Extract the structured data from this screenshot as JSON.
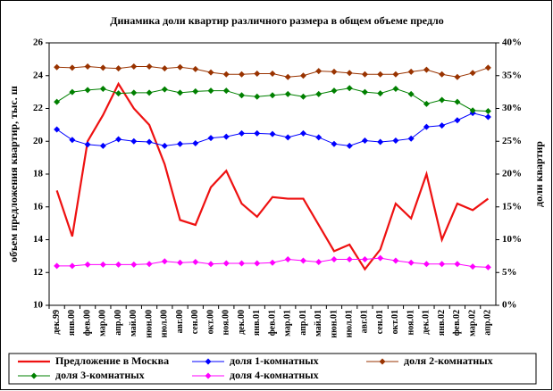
{
  "chart_data": {
    "type": "line",
    "title": "Динамика доли квартир различного размера в общем объеме предло",
    "y_label": "объем предложения квартир, тыс. ш",
    "y2_label": "доли квартир",
    "categories": [
      "дек.99",
      "янв.00",
      "фев.00",
      "мар.00",
      "апр.00",
      "май.00",
      "июн.00",
      "июл.00",
      "авг.00",
      "сен.00",
      "окт.00",
      "ноя.00",
      "дек.00",
      "янв.01",
      "фев.01",
      "мар.01",
      "апр.01",
      "май.01",
      "июн.01",
      "июл.01",
      "авг.01",
      "сен.01",
      "окт.01",
      "ноя.01",
      "дек.01",
      "янв.02",
      "фев.02",
      "мар.02",
      "апр.02"
    ],
    "ylim": [
      10,
      26
    ],
    "yticks": [
      10,
      12,
      14,
      16,
      18,
      20,
      22,
      24,
      26
    ],
    "y2lim": [
      0,
      40
    ],
    "y2ticks": [
      {
        "value": 0,
        "label": "0%"
      },
      {
        "value": 5,
        "label": "5%"
      },
      {
        "value": 10,
        "label": "10%"
      },
      {
        "value": 15,
        "label": "15%"
      },
      {
        "value": 20,
        "label": "20%"
      },
      {
        "value": 25,
        "label": "25%"
      },
      {
        "value": 30,
        "label": "30%"
      },
      {
        "value": 35,
        "label": "35%"
      },
      {
        "value": 40,
        "label": "40%"
      }
    ],
    "grid": false,
    "series": [
      {
        "name": "Предложение в Москва",
        "color": "#ee1111",
        "marker": false,
        "values": [
          17.0,
          14.2,
          20.0,
          21.6,
          23.5,
          22.0,
          21.0,
          18.6,
          15.2,
          14.9,
          17.2,
          18.2,
          16.2,
          15.4,
          16.6,
          16.5,
          16.5,
          14.9,
          13.3,
          13.7,
          12.2,
          13.4,
          16.2,
          15.3,
          18.0,
          14.0,
          16.2,
          15.8,
          16.5
        ]
      },
      {
        "name": "доля 1-комнатных",
        "color": "#0000ff",
        "marker": true,
        "axis": "y2",
        "values": [
          26.8,
          25.2,
          24.5,
          24.3,
          25.3,
          25.0,
          24.9,
          24.3,
          24.6,
          24.7,
          25.5,
          25.7,
          26.2,
          26.2,
          26.1,
          25.6,
          26.2,
          25.6,
          24.6,
          24.3,
          25.1,
          24.9,
          25.1,
          25.4,
          27.2,
          27.4,
          28.2,
          29.3,
          28.7
        ]
      },
      {
        "name": "доля 2-комнатных",
        "color": "#993300",
        "marker": true,
        "axis": "y2",
        "values": [
          36.3,
          36.2,
          36.4,
          36.2,
          36.1,
          36.4,
          36.4,
          36.1,
          36.3,
          36.0,
          35.5,
          35.2,
          35.2,
          35.3,
          35.3,
          34.8,
          35.0,
          35.7,
          35.6,
          35.4,
          35.2,
          35.2,
          35.2,
          35.6,
          35.9,
          35.2,
          34.8,
          35.4,
          36.2
        ]
      },
      {
        "name": "доля 3-комнатных",
        "color": "#008000",
        "marker": true,
        "axis": "y2",
        "values": [
          31.0,
          32.5,
          32.8,
          33.0,
          32.3,
          32.4,
          32.4,
          32.9,
          32.4,
          32.6,
          32.7,
          32.7,
          32.0,
          31.8,
          32.0,
          32.2,
          31.8,
          32.2,
          32.7,
          33.1,
          32.5,
          32.3,
          33.0,
          32.2,
          30.7,
          31.3,
          31.0,
          29.7,
          29.6
        ]
      },
      {
        "name": "доля 4-комнатных",
        "color": "#ff00ff",
        "marker": true,
        "axis": "y2",
        "values": [
          6.0,
          6.0,
          6.2,
          6.2,
          6.2,
          6.2,
          6.3,
          6.7,
          6.5,
          6.6,
          6.3,
          6.4,
          6.4,
          6.4,
          6.5,
          7.0,
          6.8,
          6.6,
          7.0,
          7.0,
          7.0,
          7.2,
          6.8,
          6.5,
          6.3,
          6.3,
          6.3,
          5.9,
          5.8
        ]
      }
    ]
  }
}
